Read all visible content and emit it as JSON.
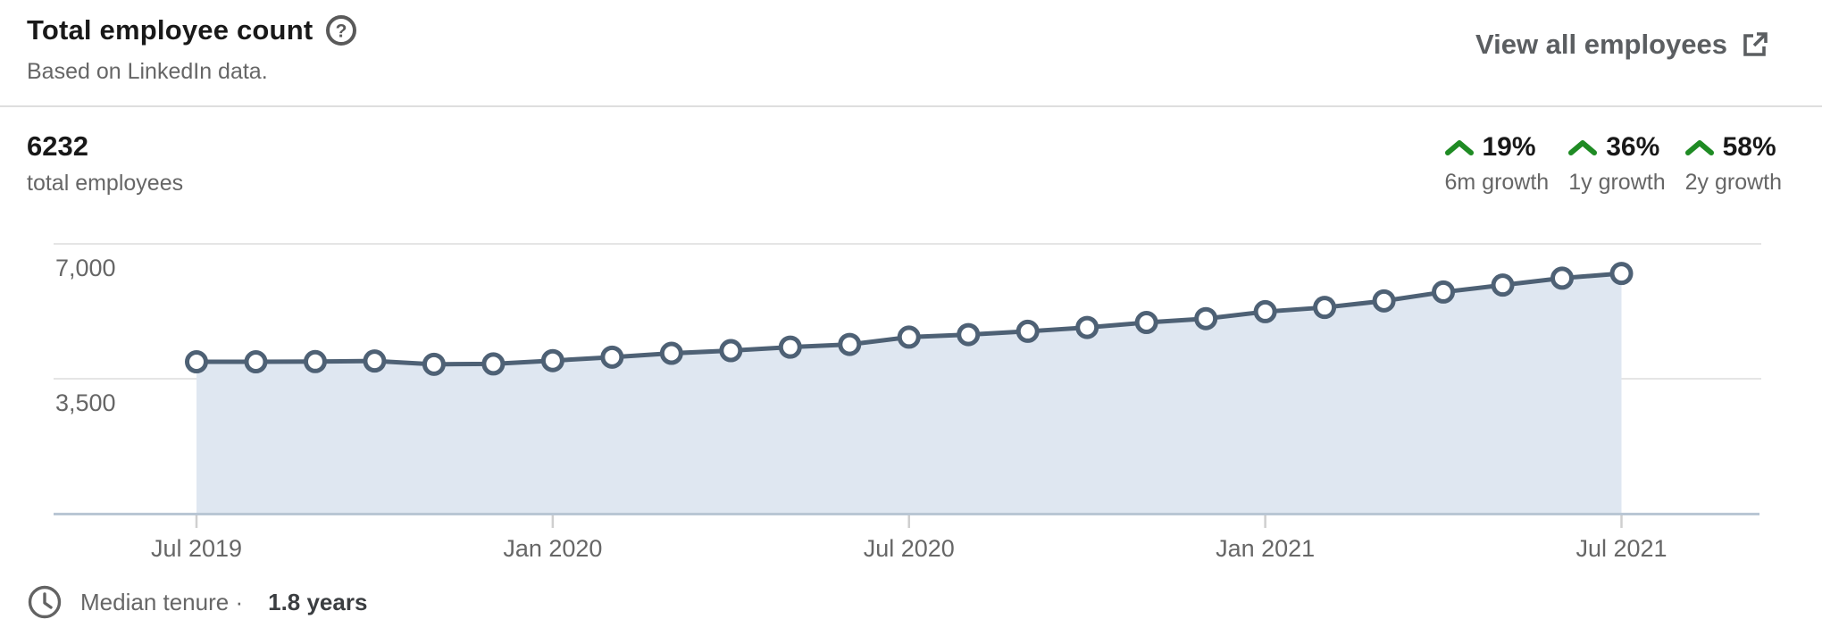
{
  "header": {
    "title": "Total employee count",
    "subtitle": "Based on LinkedIn data.",
    "view_all_label": "View all employees"
  },
  "summary": {
    "total_value": "6232",
    "total_label": "total employees",
    "growth_stats": [
      {
        "value": "19%",
        "label": "6m growth"
      },
      {
        "value": "36%",
        "label": "1y growth"
      },
      {
        "value": "58%",
        "label": "2y growth"
      }
    ]
  },
  "footer": {
    "tenure_label": "Median tenure ·",
    "tenure_value": "1.8 years"
  },
  "icons": {
    "help": "help-icon",
    "external_link": "external-link-icon",
    "growth_caret": "growth-up-caret-icon",
    "clock": "clock-icon"
  },
  "colors": {
    "accent_line": "#4e6175",
    "area_fill": "#dfe7f1",
    "growth_green": "#1f8b24",
    "gridline": "#e5e5e5",
    "axis_line": "#b9c6d4",
    "tick": "#cfcfcf",
    "text_primary": "#191919",
    "text_secondary": "#666666"
  },
  "chart_data": {
    "type": "area",
    "title": "Total employee count",
    "x": [
      "Jul 2019",
      "Aug 2019",
      "Sep 2019",
      "Oct 2019",
      "Nov 2019",
      "Dec 2019",
      "Jan 2020",
      "Feb 2020",
      "Mar 2020",
      "Apr 2020",
      "May 2020",
      "Jun 2020",
      "Jul 2020",
      "Aug 2020",
      "Sep 2020",
      "Oct 2020",
      "Nov 2020",
      "Dec 2020",
      "Jan 2021",
      "Feb 2021",
      "Mar 2021",
      "Apr 2021",
      "May 2021",
      "Jun 2021",
      "Jul 2021"
    ],
    "values": [
      3940,
      3940,
      3945,
      3960,
      3875,
      3885,
      3970,
      4060,
      4160,
      4230,
      4320,
      4390,
      4580,
      4645,
      4730,
      4830,
      4960,
      5060,
      5240,
      5350,
      5520,
      5750,
      5930,
      6110,
      6232
    ],
    "ylim": [
      0,
      7000
    ],
    "y_ticks": [
      3500,
      7000
    ],
    "y_tick_labels": [
      "3,500",
      "7,000"
    ],
    "x_tick_indices": [
      0,
      6,
      12,
      18,
      24
    ],
    "x_tick_labels": [
      "Jul 2019",
      "Jan 2020",
      "Jul 2020",
      "Jan 2021",
      "Jul 2021"
    ],
    "grid": "horizontal",
    "legend": "none",
    "marker": "open-circle",
    "line_color": "#4e6175",
    "fill_color": "#dfe7f1"
  }
}
